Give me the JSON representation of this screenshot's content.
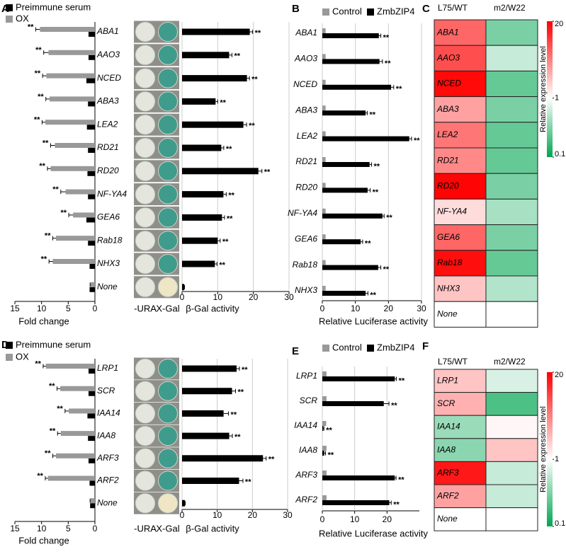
{
  "chart_data": [
    {
      "label": "A",
      "type": "bar",
      "x_reversed": true,
      "xlabel": "Fold change",
      "categories": [
        "ABA1",
        "AAO3",
        "NCED",
        "ABA3",
        "LEA2",
        "RD21",
        "RD20",
        "NF-YA4",
        "GEA6",
        "Rab18",
        "NHX3",
        "None"
      ],
      "series": [
        {
          "name": "Preimmune serum",
          "color": "#000000",
          "values": [
            1.2,
            1.2,
            1.6,
            1.3,
            1.5,
            1.3,
            1.4,
            1.3,
            1.6,
            1.3,
            1.0,
            1.0
          ]
        },
        {
          "name": "OX",
          "color": "#999999",
          "values": [
            10.3,
            8.7,
            9.1,
            8.5,
            9.3,
            7.5,
            8.3,
            5.5,
            4.1,
            7.3,
            7.9,
            0.8
          ],
          "errors": [
            0.8,
            0.9,
            0.7,
            0.7,
            0.6,
            0.8,
            0.6,
            0.9,
            0.8,
            0.6,
            0.7,
            0.1
          ],
          "significance": [
            "**",
            "**",
            "**",
            "**",
            "**",
            "**",
            "**",
            "**",
            "**",
            "**",
            "**",
            null
          ]
        }
      ],
      "xlim": [
        0,
        15
      ],
      "xticks": [
        15,
        10,
        5,
        0
      ],
      "grid": false
    },
    {
      "type": "plates",
      "columns": [
        "-URA",
        "X-Gal"
      ]
    },
    {
      "type": "bar",
      "xlabel": "β-Gal  activity",
      "series": [
        {
          "color": "#000000",
          "values": [
            19,
            13.2,
            18.2,
            9.4,
            17.2,
            11,
            21.4,
            11.6,
            11.2,
            10,
            9.2,
            0.6
          ],
          "errors": [
            0.8,
            0.8,
            0.7,
            0.6,
            0.9,
            0.7,
            1.0,
            0.8,
            0.7,
            0.7,
            0.6,
            0.1
          ],
          "significance": [
            "**",
            "**",
            "**",
            "**",
            "**",
            "**",
            "**",
            "**",
            "**",
            "**",
            "**",
            null
          ]
        }
      ],
      "xlim": [
        0,
        30
      ],
      "xticks": [
        0,
        10,
        20,
        30
      ],
      "grid": true
    },
    {
      "label": "B",
      "type": "bar",
      "xlabel": "Relative Luciferase activity",
      "categories": [
        "ABA1",
        "AAO3",
        "NCED",
        "ABA3",
        "LEA2",
        "RD21",
        "RD20",
        "NF-YA4",
        "GEA6",
        "Rab18",
        "NHX3"
      ],
      "series": [
        {
          "name": "Control",
          "color": "#999999",
          "values": [
            1,
            1,
            1,
            1,
            1,
            1,
            1,
            1,
            1,
            1,
            1
          ]
        },
        {
          "name": "ZmbZIP4",
          "color": "#000000",
          "values": [
            17.1,
            17.3,
            20.8,
            13.1,
            26.3,
            14.3,
            13.7,
            18.2,
            11.6,
            16.9,
            13.1
          ],
          "errors": [
            0.6,
            0.9,
            0.8,
            0.5,
            0.7,
            0.6,
            0.8,
            0.5,
            0.6,
            0.8,
            0.7
          ],
          "significance": [
            "**",
            "**",
            "**",
            "**",
            "**",
            "**",
            "**",
            "**",
            "**",
            "**",
            "**"
          ]
        }
      ],
      "xlim": [
        0,
        30
      ],
      "xticks": [
        0,
        10,
        20,
        30
      ],
      "grid": true
    },
    {
      "label": "C",
      "type": "heatmap",
      "columns": [
        "L75/WT",
        "m2/W22"
      ],
      "rows": [
        "ABA1",
        "AAO3",
        "NCED",
        "ABA3",
        "LEA2",
        "RD21",
        "RD20",
        "NF-YA4",
        "GEA6",
        "Rab18",
        "NHX3",
        "None"
      ],
      "values": [
        [
          6,
          0.3
        ],
        [
          8,
          0.6
        ],
        [
          18,
          0.25
        ],
        [
          3,
          0.3
        ],
        [
          5,
          0.25
        ],
        [
          4,
          0.25
        ],
        [
          19,
          0.3
        ],
        [
          1.5,
          0.45
        ],
        [
          6,
          0.3
        ],
        [
          17,
          0.25
        ],
        [
          2,
          0.5
        ],
        [
          1,
          1
        ]
      ],
      "clabel": "Relative expression level",
      "log_scale": true,
      "clim": [
        0.1,
        20
      ],
      "cticks": [
        0.1,
        1,
        20
      ],
      "colors": [
        "#00a651",
        "#ffffff",
        "#ff0000"
      ]
    },
    {
      "label": "D",
      "type": "bar",
      "x_reversed": true,
      "xlabel": "Fold change",
      "categories": [
        "LRP1",
        "SCR",
        "IAA14",
        "IAA8",
        "ARF3",
        "ARF2",
        "None"
      ],
      "series": [
        {
          "name": "Preimmune serum",
          "color": "#000000",
          "values": [
            1.2,
            1.2,
            1.4,
            1.3,
            1.2,
            1.0,
            0.9
          ]
        },
        {
          "name": "OX",
          "color": "#999999",
          "values": [
            9.2,
            6.5,
            4.9,
            6.4,
            7.3,
            8.8,
            0.8
          ],
          "errors": [
            0.5,
            0.6,
            0.7,
            0.6,
            0.6,
            0.5,
            0.1
          ],
          "significance": [
            "**",
            "**",
            "**",
            "**",
            "**",
            "**",
            null
          ]
        }
      ],
      "xlim": [
        0,
        15
      ],
      "xticks": [
        15,
        10,
        5,
        0
      ],
      "grid": false
    },
    {
      "type": "plates",
      "columns": [
        "-URA",
        "X-Gal"
      ]
    },
    {
      "type": "bar",
      "xlabel": "β-Gal  activity",
      "series": [
        {
          "color": "#000000",
          "values": [
            15.5,
            14.2,
            11.8,
            13.4,
            23,
            16.2,
            0.8
          ],
          "errors": [
            0.8,
            1.0,
            1.4,
            0.9,
            0.9,
            1.1,
            0.1
          ],
          "significance": [
            "**",
            "**",
            "**",
            "**",
            "**",
            "**",
            null
          ]
        }
      ],
      "xlim": [
        0,
        30
      ],
      "xticks": [
        0,
        10,
        20,
        30
      ],
      "grid": true
    },
    {
      "label": "E",
      "type": "bar",
      "xlabel": "Relative Luciferase activity",
      "categories": [
        "LRP1",
        "SCR",
        "IAA14",
        "IAA8",
        "ARF3",
        "ARF2"
      ],
      "series": [
        {
          "name": "Control",
          "color": "#999999",
          "values": [
            1.3,
            1.3,
            1.2,
            1.3,
            1.3,
            1.3
          ]
        },
        {
          "name": "ZmbZIP4",
          "color": "#000000",
          "values": [
            22.4,
            19,
            0.3,
            0.6,
            22.4,
            20.7
          ],
          "errors": [
            0.5,
            1.6,
            0.2,
            0.4,
            0.4,
            0.6
          ],
          "significance": [
            "**",
            "**",
            "**",
            "**",
            "**",
            "**"
          ]
        }
      ],
      "xlim": [
        0,
        30
      ],
      "xticks": [
        0,
        10,
        20
      ],
      "grid": true
    },
    {
      "label": "F",
      "type": "heatmap",
      "columns": [
        "L75/WT",
        "m2/W22"
      ],
      "rows": [
        "LRP1",
        "SCR",
        "IAA14",
        "IAA8",
        "ARF3",
        "ARF2",
        "None"
      ],
      "values": [
        [
          2,
          0.7
        ],
        [
          2.5,
          0.2
        ],
        [
          0.4,
          1.1
        ],
        [
          0.35,
          2
        ],
        [
          15,
          0.6
        ],
        [
          3,
          0.6
        ],
        [
          1,
          1
        ]
      ],
      "clabel": "Relative expression level",
      "log_scale": true,
      "clim": [
        0.1,
        20
      ],
      "cticks": [
        0.1,
        1,
        20
      ],
      "colors": [
        "#00a651",
        "#ffffff",
        "#ff0000"
      ]
    }
  ]
}
